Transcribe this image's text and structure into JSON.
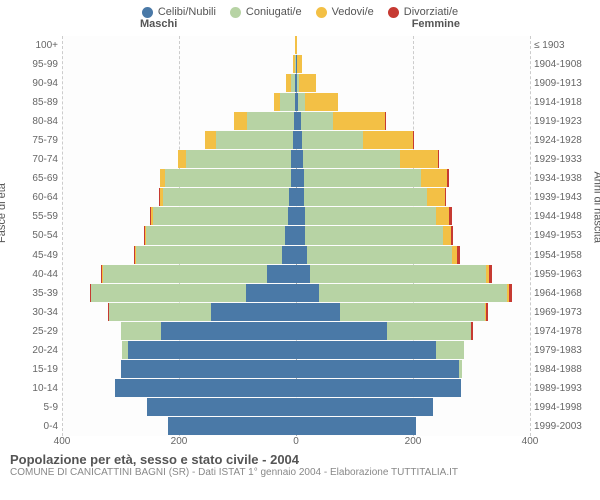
{
  "legend": [
    {
      "label": "Celibi/Nubili",
      "color": "#4a79a7"
    },
    {
      "label": "Coniugati/e",
      "color": "#b7d3a4"
    },
    {
      "label": "Vedovi/e",
      "color": "#f3c045"
    },
    {
      "label": "Divorziati/e",
      "color": "#c63a32"
    }
  ],
  "columns": {
    "male": "Maschi",
    "female": "Femmine"
  },
  "axis": {
    "y_left": "Fasce di età",
    "y_right": "Anni di nascita",
    "x_max": 400,
    "x_ticks": [
      400,
      200,
      0,
      200,
      400
    ]
  },
  "footer": {
    "title": "Popolazione per età, sesso e stato civile - 2004",
    "subtitle": "COMUNE DI CANICATTINI BAGNI (SR) - Dati ISTAT 1° gennaio 2004 - Elaborazione TUTTITALIA.IT"
  },
  "rows": [
    {
      "age": "100+",
      "birth": "≤ 1903",
      "m": {
        "cel": 0,
        "con": 0,
        "ved": 2,
        "div": 0
      },
      "f": {
        "cel": 0,
        "con": 0,
        "ved": 2,
        "div": 0
      }
    },
    {
      "age": "95-99",
      "birth": "1904-1908",
      "m": {
        "cel": 0,
        "con": 1,
        "ved": 4,
        "div": 0
      },
      "f": {
        "cel": 1,
        "con": 0,
        "ved": 10,
        "div": 0
      }
    },
    {
      "age": "90-94",
      "birth": "1909-1913",
      "m": {
        "cel": 1,
        "con": 8,
        "ved": 8,
        "div": 0
      },
      "f": {
        "cel": 2,
        "con": 3,
        "ved": 30,
        "div": 0
      }
    },
    {
      "age": "85-89",
      "birth": "1914-1918",
      "m": {
        "cel": 2,
        "con": 25,
        "ved": 10,
        "div": 0
      },
      "f": {
        "cel": 4,
        "con": 12,
        "ved": 56,
        "div": 0
      }
    },
    {
      "age": "80-84",
      "birth": "1919-1923",
      "m": {
        "cel": 4,
        "con": 80,
        "ved": 22,
        "div": 0
      },
      "f": {
        "cel": 8,
        "con": 55,
        "ved": 90,
        "div": 1
      }
    },
    {
      "age": "75-79",
      "birth": "1924-1928",
      "m": {
        "cel": 6,
        "con": 130,
        "ved": 20,
        "div": 0
      },
      "f": {
        "cel": 10,
        "con": 105,
        "ved": 85,
        "div": 2
      }
    },
    {
      "age": "70-74",
      "birth": "1929-1933",
      "m": {
        "cel": 8,
        "con": 180,
        "ved": 14,
        "div": 0
      },
      "f": {
        "cel": 12,
        "con": 165,
        "ved": 65,
        "div": 3
      }
    },
    {
      "age": "65-69",
      "birth": "1934-1938",
      "m": {
        "cel": 9,
        "con": 215,
        "ved": 8,
        "div": 1
      },
      "f": {
        "cel": 13,
        "con": 200,
        "ved": 45,
        "div": 3
      }
    },
    {
      "age": "60-64",
      "birth": "1939-1943",
      "m": {
        "cel": 12,
        "con": 215,
        "ved": 6,
        "div": 1
      },
      "f": {
        "cel": 14,
        "con": 210,
        "ved": 30,
        "div": 3
      }
    },
    {
      "age": "55-59",
      "birth": "1944-1948",
      "m": {
        "cel": 14,
        "con": 230,
        "ved": 4,
        "div": 2
      },
      "f": {
        "cel": 15,
        "con": 225,
        "ved": 22,
        "div": 4
      }
    },
    {
      "age": "50-54",
      "birth": "1949-1953",
      "m": {
        "cel": 18,
        "con": 238,
        "ved": 2,
        "div": 2
      },
      "f": {
        "cel": 16,
        "con": 235,
        "ved": 14,
        "div": 4
      }
    },
    {
      "age": "45-49",
      "birth": "1954-1958",
      "m": {
        "cel": 24,
        "con": 250,
        "ved": 1,
        "div": 2
      },
      "f": {
        "cel": 18,
        "con": 248,
        "ved": 9,
        "div": 5
      }
    },
    {
      "age": "40-44",
      "birth": "1959-1963",
      "m": {
        "cel": 50,
        "con": 280,
        "ved": 1,
        "div": 2
      },
      "f": {
        "cel": 24,
        "con": 300,
        "ved": 6,
        "div": 5
      }
    },
    {
      "age": "35-39",
      "birth": "1964-1968",
      "m": {
        "cel": 85,
        "con": 265,
        "ved": 0,
        "div": 2
      },
      "f": {
        "cel": 40,
        "con": 320,
        "ved": 4,
        "div": 6
      }
    },
    {
      "age": "30-34",
      "birth": "1969-1973",
      "m": {
        "cel": 145,
        "con": 175,
        "ved": 0,
        "div": 1
      },
      "f": {
        "cel": 75,
        "con": 248,
        "ved": 2,
        "div": 4
      }
    },
    {
      "age": "25-29",
      "birth": "1974-1978",
      "m": {
        "cel": 230,
        "con": 70,
        "ved": 0,
        "div": 0
      },
      "f": {
        "cel": 155,
        "con": 145,
        "ved": 0,
        "div": 2
      }
    },
    {
      "age": "20-24",
      "birth": "1979-1983",
      "m": {
        "cel": 288,
        "con": 10,
        "ved": 0,
        "div": 0
      },
      "f": {
        "cel": 240,
        "con": 48,
        "ved": 0,
        "div": 0
      }
    },
    {
      "age": "15-19",
      "birth": "1984-1988",
      "m": {
        "cel": 300,
        "con": 0,
        "ved": 0,
        "div": 0
      },
      "f": {
        "cel": 278,
        "con": 5,
        "ved": 0,
        "div": 0
      }
    },
    {
      "age": "10-14",
      "birth": "1989-1993",
      "m": {
        "cel": 310,
        "con": 0,
        "ved": 0,
        "div": 0
      },
      "f": {
        "cel": 282,
        "con": 0,
        "ved": 0,
        "div": 0
      }
    },
    {
      "age": "5-9",
      "birth": "1994-1998",
      "m": {
        "cel": 255,
        "con": 0,
        "ved": 0,
        "div": 0
      },
      "f": {
        "cel": 235,
        "con": 0,
        "ved": 0,
        "div": 0
      }
    },
    {
      "age": "0-4",
      "birth": "1999-2003",
      "m": {
        "cel": 218,
        "con": 0,
        "ved": 0,
        "div": 0
      },
      "f": {
        "cel": 205,
        "con": 0,
        "ved": 0,
        "div": 0
      }
    }
  ]
}
